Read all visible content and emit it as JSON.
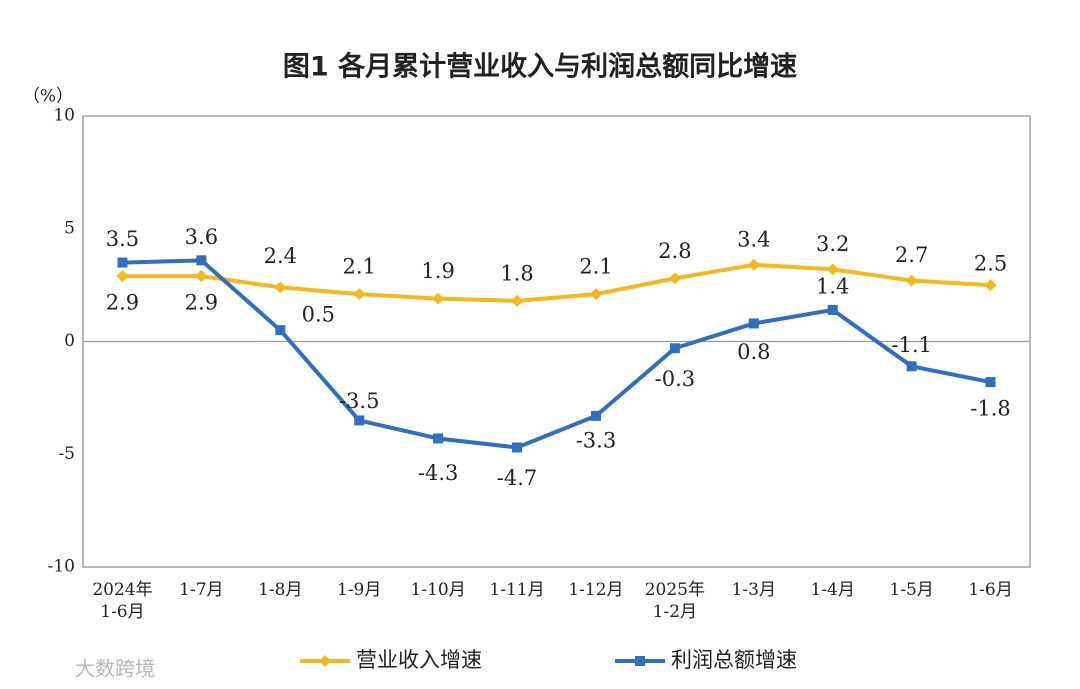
{
  "chart_data": {
    "type": "line",
    "title": "图1  各月累计营业收入与利润总额同比增速",
    "y_label": "（%）",
    "categories": [
      "2024年\n1-6月",
      "1-7月",
      "1-8月",
      "1-9月",
      "1-10月",
      "1-11月",
      "1-12月",
      "2025年\n1-2月",
      "1-3月",
      "1-4月",
      "1-5月",
      "1-6月"
    ],
    "series": [
      {
        "name": "营业收入增速",
        "color": "#f5b71c",
        "marker": "diamond",
        "values": [
          2.9,
          2.9,
          2.4,
          2.1,
          1.9,
          1.8,
          2.1,
          2.8,
          3.4,
          3.2,
          2.7,
          2.5
        ]
      },
      {
        "name": "利润总额增速",
        "color": "#2f6fc1",
        "marker": "square",
        "values": [
          3.5,
          3.6,
          0.5,
          -3.5,
          -4.3,
          -4.7,
          -3.3,
          -0.3,
          0.8,
          1.4,
          -1.1,
          -1.8
        ]
      }
    ],
    "ylim": [
      -10,
      10
    ],
    "yticks": [
      -10,
      -5,
      0,
      5,
      10
    ],
    "zero_line": true,
    "legend": "bottom",
    "watermark": "大数跨境"
  }
}
